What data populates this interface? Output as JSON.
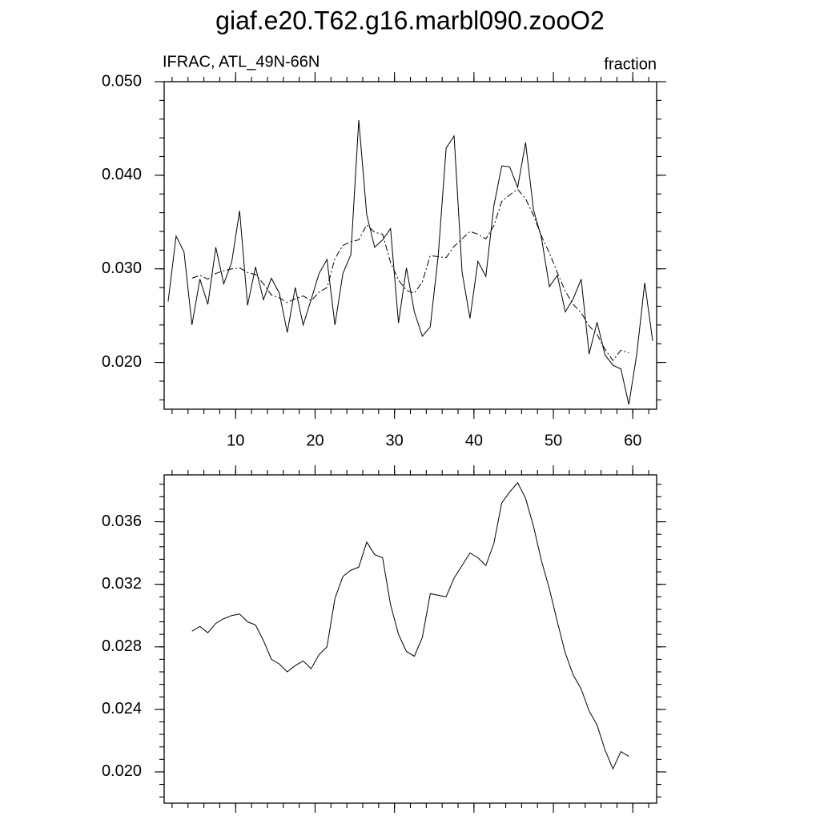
{
  "title": "giaf.e20.T62.g16.marbl090.zooO2",
  "chart_data": [
    {
      "type": "line",
      "left_label": "IFRAC, ATL_49N-66N",
      "right_label": "fraction",
      "xlim": [
        1,
        63
      ],
      "xticks": [
        10,
        20,
        30,
        40,
        50,
        60
      ],
      "ylim": [
        0.015,
        0.05
      ],
      "yticks": [
        {
          "value": 0.02,
          "label": "0.020"
        },
        {
          "value": 0.03,
          "label": "0.030"
        },
        {
          "value": 0.04,
          "label": "0.040"
        },
        {
          "value": 0.05,
          "label": "0.050"
        }
      ],
      "series": [
        {
          "color": "#000000",
          "dash": "solid",
          "x": [
            1.5,
            2.5,
            3.5,
            4.5,
            5.5,
            6.5,
            7.5,
            8.5,
            9.5,
            10.5,
            11.5,
            12.5,
            13.5,
            14.5,
            15.5,
            16.5,
            17.5,
            18.5,
            19.5,
            20.5,
            21.5,
            22.5,
            23.5,
            24.5,
            25.5,
            26.5,
            27.5,
            28.5,
            29.5,
            30.5,
            31.5,
            32.5,
            33.5,
            34.5,
            35.5,
            36.5,
            37.5,
            38.5,
            39.5,
            40.5,
            41.5,
            42.5,
            43.5,
            44.5,
            45.5,
            46.5,
            47.5,
            48.5,
            49.5,
            50.5,
            51.5,
            52.5,
            53.5,
            54.5,
            55.5,
            56.5,
            57.5,
            58.5,
            59.5,
            60.5,
            61.5,
            62.5
          ],
          "values": [
            0.0265,
            0.0335,
            0.0318,
            0.024,
            0.0289,
            0.0262,
            0.0323,
            0.0284,
            0.0307,
            0.0362,
            0.0261,
            0.0302,
            0.0267,
            0.029,
            0.0274,
            0.0232,
            0.028,
            0.024,
            0.0267,
            0.0295,
            0.031,
            0.024,
            0.0295,
            0.0315,
            0.0459,
            0.0358,
            0.0323,
            0.0331,
            0.0343,
            0.0242,
            0.0301,
            0.0254,
            0.0228,
            0.0238,
            0.0314,
            0.0429,
            0.0442,
            0.0297,
            0.0247,
            0.0308,
            0.0292,
            0.0367,
            0.041,
            0.0409,
            0.0387,
            0.0435,
            0.0363,
            0.0333,
            0.0281,
            0.0293,
            0.0254,
            0.0268,
            0.0289,
            0.0209,
            0.0243,
            0.0208,
            0.0197,
            0.0193,
            0.0155,
            0.0209,
            0.0285,
            0.0223
          ]
        },
        {
          "color": "#000000",
          "dash": "dashdot",
          "x": [
            4.5,
            5.5,
            6.5,
            7.5,
            8.5,
            9.5,
            10.5,
            11.5,
            12.5,
            13.5,
            14.5,
            15.5,
            16.5,
            17.5,
            18.5,
            19.5,
            20.5,
            21.5,
            22.5,
            23.5,
            24.5,
            25.5,
            26.5,
            27.5,
            28.5,
            29.5,
            30.5,
            31.5,
            32.5,
            33.5,
            34.5,
            35.5,
            36.5,
            37.5,
            38.5,
            39.5,
            40.5,
            41.5,
            42.5,
            43.5,
            44.5,
            45.5,
            46.5,
            47.5,
            48.5,
            49.5,
            50.5,
            51.5,
            52.5,
            53.5,
            54.5,
            55.5,
            56.5,
            57.5,
            58.5,
            59.5
          ],
          "values": [
            0.029,
            0.0293,
            0.0289,
            0.0295,
            0.0298,
            0.03,
            0.0301,
            0.0296,
            0.0294,
            0.0284,
            0.0272,
            0.0269,
            0.0264,
            0.0268,
            0.0271,
            0.0266,
            0.0275,
            0.028,
            0.0311,
            0.0325,
            0.0329,
            0.0331,
            0.0347,
            0.0339,
            0.0337,
            0.0307,
            0.0288,
            0.0277,
            0.0274,
            0.0286,
            0.0314,
            0.0313,
            0.0312,
            0.0324,
            0.0332,
            0.034,
            0.0337,
            0.0332,
            0.0346,
            0.0372,
            0.0379,
            0.0385,
            0.0375,
            0.0357,
            0.0335,
            0.0317,
            0.0296,
            0.0276,
            0.0262,
            0.0253,
            0.0239,
            0.023,
            0.0214,
            0.0202,
            0.0213,
            0.021
          ]
        }
      ]
    },
    {
      "type": "line",
      "xlim": [
        1,
        63
      ],
      "xticks": [
        10,
        20,
        30,
        40,
        50,
        60
      ],
      "ylim": [
        0.018,
        0.039
      ],
      "yticks": [
        {
          "value": 0.02,
          "label": "0.020"
        },
        {
          "value": 0.024,
          "label": "0.024"
        },
        {
          "value": 0.028,
          "label": "0.028"
        },
        {
          "value": 0.032,
          "label": "0.032"
        },
        {
          "value": 0.036,
          "label": "0.036"
        }
      ],
      "series": [
        {
          "color": "#000000",
          "dash": "solid",
          "x": [
            4.5,
            5.5,
            6.5,
            7.5,
            8.5,
            9.5,
            10.5,
            11.5,
            12.5,
            13.5,
            14.5,
            15.5,
            16.5,
            17.5,
            18.5,
            19.5,
            20.5,
            21.5,
            22.5,
            23.5,
            24.5,
            25.5,
            26.5,
            27.5,
            28.5,
            29.5,
            30.5,
            31.5,
            32.5,
            33.5,
            34.5,
            35.5,
            36.5,
            37.5,
            38.5,
            39.5,
            40.5,
            41.5,
            42.5,
            43.5,
            44.5,
            45.5,
            46.5,
            47.5,
            48.5,
            49.5,
            50.5,
            51.5,
            52.5,
            53.5,
            54.5,
            55.5,
            56.5,
            57.5,
            58.5,
            59.5
          ],
          "values": [
            0.029,
            0.0293,
            0.0289,
            0.0295,
            0.0298,
            0.03,
            0.0301,
            0.0296,
            0.0294,
            0.0284,
            0.0272,
            0.0269,
            0.0264,
            0.0268,
            0.0271,
            0.0266,
            0.0275,
            0.028,
            0.0311,
            0.0325,
            0.0329,
            0.0331,
            0.0347,
            0.0339,
            0.0337,
            0.0307,
            0.0288,
            0.0277,
            0.0274,
            0.0286,
            0.0314,
            0.0313,
            0.0312,
            0.0324,
            0.0332,
            0.034,
            0.0337,
            0.0332,
            0.0346,
            0.0372,
            0.0379,
            0.0385,
            0.0375,
            0.0357,
            0.0335,
            0.0317,
            0.0296,
            0.0276,
            0.0262,
            0.0253,
            0.0239,
            0.023,
            0.0214,
            0.0202,
            0.0213,
            0.021
          ]
        }
      ]
    }
  ]
}
